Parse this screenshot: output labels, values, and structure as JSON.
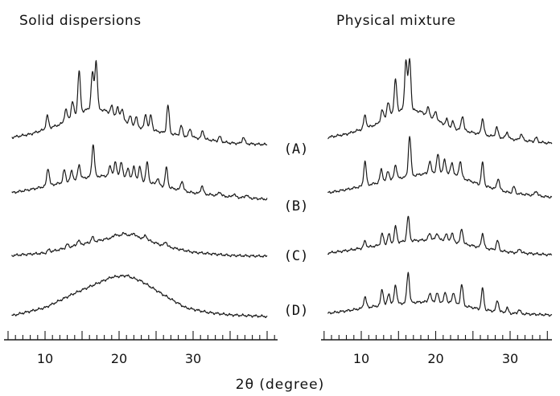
{
  "chart_data": {
    "type": "line",
    "xlabel": "2θ (degree)",
    "xlim": [
      5,
      40
    ],
    "x_ticks": [
      10,
      20,
      30
    ],
    "curve_labels": [
      "(A)",
      "(B)",
      "(C)",
      "(D)"
    ],
    "panels": [
      {
        "title": "Solid dispersions",
        "series": [
          {
            "name": "(A)",
            "baseline": [
              [
                5.5,
                10.0
              ],
              [
                8,
                14
              ],
              [
                12,
                26
              ],
              [
                14,
                38
              ],
              [
                16,
                46
              ],
              [
                18,
                44
              ],
              [
                20,
                34
              ],
              [
                22,
                24
              ],
              [
                26,
                16
              ],
              [
                30,
                10
              ],
              [
                35,
                3
              ],
              [
                40,
                1
              ]
            ],
            "peaks": [
              [
                10.3,
                16
              ],
              [
                12.8,
                14
              ],
              [
                13.7,
                18
              ],
              [
                14.6,
                52
              ],
              [
                16.4,
                45
              ],
              [
                16.9,
                60
              ],
              [
                19,
                10
              ],
              [
                19.8,
                12
              ],
              [
                20.4,
                14
              ],
              [
                21.5,
                10
              ],
              [
                22.3,
                12
              ],
              [
                23.6,
                18
              ],
              [
                24.3,
                18
              ],
              [
                26.6,
                35
              ],
              [
                28.4,
                12
              ],
              [
                29.6,
                10
              ],
              [
                31.3,
                10
              ],
              [
                33.6,
                6
              ],
              [
                36.8,
                8
              ]
            ]
          },
          {
            "name": "(B)",
            "baseline": [
              [
                5.5,
                10.0
              ],
              [
                8,
                14
              ],
              [
                12,
                22
              ],
              [
                16,
                30
              ],
              [
                20,
                32
              ],
              [
                22,
                28
              ],
              [
                26,
                18
              ],
              [
                30,
                10
              ],
              [
                35,
                5
              ],
              [
                40,
                2
              ]
            ],
            "peaks": [
              [
                10.4,
                22
              ],
              [
                12.6,
                15
              ],
              [
                13.6,
                12
              ],
              [
                14.6,
                18
              ],
              [
                16.5,
                40
              ],
              [
                18.8,
                12
              ],
              [
                19.5,
                16
              ],
              [
                20.3,
                16
              ],
              [
                21.2,
                10
              ],
              [
                22.0,
                14
              ],
              [
                22.8,
                16
              ],
              [
                23.8,
                24
              ],
              [
                25.2,
                8
              ],
              [
                26.4,
                24
              ],
              [
                28.5,
                12
              ],
              [
                31.2,
                10
              ],
              [
                33.6,
                5
              ],
              [
                35.5,
                4
              ],
              [
                37.2,
                4
              ]
            ]
          },
          {
            "name": "(C)",
            "baseline": [
              [
                5.5,
                2.0
              ],
              [
                10,
                5
              ],
              [
                14,
                14
              ],
              [
                18,
                22
              ],
              [
                21,
                28
              ],
              [
                23,
                24
              ],
              [
                26,
                14
              ],
              [
                30,
                6
              ],
              [
                35,
                2
              ],
              [
                40,
                1
              ]
            ],
            "peaks": [
              [
                10.5,
                3
              ],
              [
                13.0,
                4
              ],
              [
                14.5,
                6
              ],
              [
                16.4,
                6
              ],
              [
                19.5,
                4
              ],
              [
                20.5,
                3
              ],
              [
                22.0,
                4
              ],
              [
                23.6,
                5
              ],
              [
                26.3,
                6
              ]
            ]
          },
          {
            "name": "(D)",
            "baseline": [
              [
                5.5,
                2.0
              ],
              [
                10,
                12
              ],
              [
                14,
                30
              ],
              [
                17,
                42
              ],
              [
                19,
                50
              ],
              [
                21,
                52
              ],
              [
                23,
                45
              ],
              [
                26,
                28
              ],
              [
                29,
                12
              ],
              [
                32,
                6
              ],
              [
                35,
                3
              ],
              [
                40,
                1
              ]
            ],
            "peaks": []
          }
        ]
      },
      {
        "title": "Physical mixture",
        "series": [
          {
            "name": "(A)",
            "baseline": [
              [
                5.5,
                10.0
              ],
              [
                8,
                14
              ],
              [
                12,
                26
              ],
              [
                14,
                40
              ],
              [
                16,
                46
              ],
              [
                18,
                42
              ],
              [
                20,
                32
              ],
              [
                22,
                22
              ],
              [
                26,
                14
              ],
              [
                30,
                8
              ],
              [
                35,
                3
              ],
              [
                40,
                1
              ]
            ],
            "peaks": [
              [
                10.5,
                16
              ],
              [
                12.8,
                12
              ],
              [
                13.6,
                16
              ],
              [
                14.6,
                40
              ],
              [
                16.0,
                60
              ],
              [
                16.5,
                62
              ],
              [
                19,
                10
              ],
              [
                20,
                10
              ],
              [
                21.5,
                8
              ],
              [
                22.3,
                8
              ],
              [
                23.6,
                18
              ],
              [
                26.3,
                20
              ],
              [
                28.2,
                12
              ],
              [
                29.6,
                8
              ],
              [
                31.5,
                8
              ],
              [
                33.5,
                5
              ]
            ]
          },
          {
            "name": "(B)",
            "baseline": [
              [
                5.5,
                10.0
              ],
              [
                8,
                14
              ],
              [
                12,
                22
              ],
              [
                16,
                30
              ],
              [
                20,
                36
              ],
              [
                22,
                34
              ],
              [
                26,
                20
              ],
              [
                30,
                10
              ],
              [
                35,
                5
              ],
              [
                40,
                2
              ]
            ],
            "peaks": [
              [
                10.5,
                30
              ],
              [
                12.7,
                16
              ],
              [
                13.6,
                12
              ],
              [
                14.6,
                18
              ],
              [
                16.5,
                50
              ],
              [
                19.2,
                14
              ],
              [
                20.3,
                22
              ],
              [
                21.2,
                16
              ],
              [
                22.2,
                14
              ],
              [
                23.3,
                20
              ],
              [
                26.3,
                28
              ],
              [
                28.4,
                14
              ],
              [
                30.5,
                8
              ],
              [
                33.5,
                6
              ]
            ]
          },
          {
            "name": "(C)",
            "baseline": [
              [
                5.5,
                5.0
              ],
              [
                8,
                8
              ],
              [
                12,
                14
              ],
              [
                16,
                20
              ],
              [
                20,
                22
              ],
              [
                22,
                20
              ],
              [
                26,
                12
              ],
              [
                30,
                6
              ],
              [
                35,
                3
              ],
              [
                40,
                1
              ]
            ],
            "peaks": [
              [
                10.5,
                8
              ],
              [
                12.8,
                14
              ],
              [
                13.7,
                12
              ],
              [
                14.6,
                20
              ],
              [
                16.3,
                30
              ],
              [
                19.2,
                8
              ],
              [
                20.2,
                8
              ],
              [
                21.4,
                8
              ],
              [
                22.2,
                10
              ],
              [
                23.5,
                18
              ],
              [
                26.3,
                18
              ],
              [
                28.3,
                12
              ],
              [
                31.3,
                5
              ]
            ]
          },
          {
            "name": "(D)",
            "baseline": [
              [
                5.5,
                5.0
              ],
              [
                8,
                8
              ],
              [
                12,
                14
              ],
              [
                16,
                18
              ],
              [
                20,
                20
              ],
              [
                22,
                18
              ],
              [
                26,
                10
              ],
              [
                30,
                5
              ],
              [
                35,
                3
              ],
              [
                40,
                1
              ]
            ],
            "peaks": [
              [
                10.5,
                14
              ],
              [
                12.8,
                20
              ],
              [
                13.7,
                14
              ],
              [
                14.6,
                24
              ],
              [
                16.3,
                38
              ],
              [
                19.2,
                10
              ],
              [
                20.2,
                10
              ],
              [
                21.3,
                12
              ],
              [
                22.4,
                14
              ],
              [
                23.5,
                26
              ],
              [
                26.3,
                26
              ],
              [
                28.3,
                14
              ],
              [
                29.6,
                6
              ],
              [
                31.2,
                5
              ]
            ]
          }
        ]
      }
    ]
  }
}
